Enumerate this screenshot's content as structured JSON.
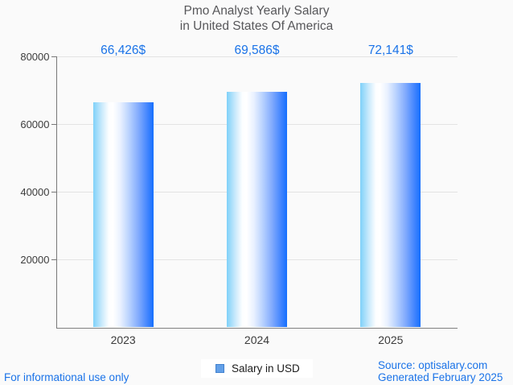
{
  "chart_data": {
    "type": "bar",
    "title": "Pmo Analyst Yearly Salary in United States Of America",
    "title_lines": [
      "Pmo Analyst Yearly Salary",
      "in United States Of America"
    ],
    "categories": [
      "2023",
      "2024",
      "2025"
    ],
    "values": [
      66426,
      69586,
      72141
    ],
    "value_labels": [
      "66,426$",
      "69,586$",
      "72,141$"
    ],
    "series_name": "Salary in USD",
    "xlabel": "",
    "ylabel": "",
    "ylim": [
      0,
      80000
    ],
    "yticks": [
      20000,
      40000,
      60000,
      80000
    ],
    "grid": true,
    "legend_position": "bottom-center",
    "colors": {
      "value_label": "#1a73e8",
      "bar_gradient_left": "#7fd1f9",
      "bar_gradient_middle": "#ffffff",
      "bar_gradient_right": "#156ffe",
      "legend_swatch_fill": "#63a0e8",
      "legend_swatch_border": "#4181cf",
      "title_text": "#57575a",
      "axis_text": "#3d3d3d",
      "gridline": "#e3e3e3",
      "axis_line": "#787878",
      "footer_text": "#1a73e8",
      "background": "#fafafa"
    }
  },
  "footer": {
    "left": "For informational use only",
    "source": "Source: optisalary.com",
    "generated": "Generated February 2025"
  }
}
